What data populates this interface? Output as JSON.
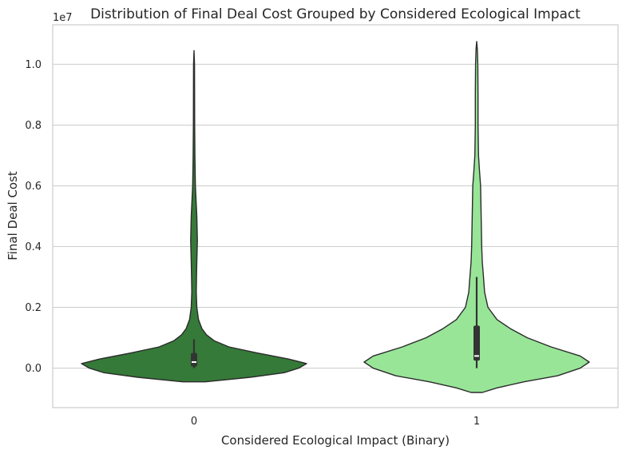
{
  "chart_data": {
    "type": "violin",
    "title": "Distribution of Final Deal Cost Grouped by Considered Ecological Impact",
    "xlabel": "Considered Ecological Impact (Binary)",
    "ylabel": "Final Deal Cost",
    "offset_label": "1e7",
    "categories": [
      "0",
      "1"
    ],
    "ylim": [
      -1300000,
      11300000
    ],
    "yticks": [
      0,
      2000000,
      4000000,
      6000000,
      8000000,
      10000000
    ],
    "ytick_labels": [
      "0.0",
      "0.2",
      "0.4",
      "0.6",
      "0.8",
      "1.0"
    ],
    "grid": "horizontal",
    "violins": [
      {
        "category": "0",
        "color": "#357a38",
        "min": -450000,
        "max": 10450000,
        "q1": 50000,
        "median": 200000,
        "q3": 500000,
        "whisker_low": 0,
        "whisker_high": 950000,
        "density": [
          [
            -450000,
            0.1
          ],
          [
            -300000,
            0.5
          ],
          [
            -150000,
            0.8
          ],
          [
            0,
            0.93
          ],
          [
            150000,
            1.0
          ],
          [
            300000,
            0.84
          ],
          [
            500000,
            0.56
          ],
          [
            700000,
            0.31
          ],
          [
            900000,
            0.18
          ],
          [
            1100000,
            0.11
          ],
          [
            1300000,
            0.07
          ],
          [
            1600000,
            0.04
          ],
          [
            2000000,
            0.025
          ],
          [
            2500000,
            0.02
          ],
          [
            3000000,
            0.022
          ],
          [
            3500000,
            0.025
          ],
          [
            4200000,
            0.03
          ],
          [
            5000000,
            0.025
          ],
          [
            6000000,
            0.012
          ],
          [
            7000000,
            0.008
          ],
          [
            8000000,
            0.006
          ],
          [
            9000000,
            0.005
          ],
          [
            10000000,
            0.004
          ],
          [
            10450000,
            0.0
          ]
        ]
      },
      {
        "category": "1",
        "color": "#98e598",
        "min": -800000,
        "max": 10750000,
        "q1": 250000,
        "median": 400000,
        "q3": 1400000,
        "whisker_low": 0,
        "whisker_high": 3000000,
        "density": [
          [
            -800000,
            0.05
          ],
          [
            -650000,
            0.18
          ],
          [
            -450000,
            0.42
          ],
          [
            -250000,
            0.72
          ],
          [
            0,
            0.92
          ],
          [
            200000,
            1.0
          ],
          [
            400000,
            0.92
          ],
          [
            700000,
            0.66
          ],
          [
            1000000,
            0.45
          ],
          [
            1300000,
            0.3
          ],
          [
            1600000,
            0.18
          ],
          [
            2000000,
            0.1
          ],
          [
            2500000,
            0.07
          ],
          [
            3000000,
            0.06
          ],
          [
            3500000,
            0.05
          ],
          [
            4000000,
            0.045
          ],
          [
            5000000,
            0.04
          ],
          [
            6000000,
            0.035
          ],
          [
            6500000,
            0.025
          ],
          [
            7000000,
            0.016
          ],
          [
            8000000,
            0.012
          ],
          [
            9000000,
            0.012
          ],
          [
            10000000,
            0.01
          ],
          [
            10500000,
            0.006
          ],
          [
            10750000,
            0.0
          ]
        ]
      }
    ]
  }
}
